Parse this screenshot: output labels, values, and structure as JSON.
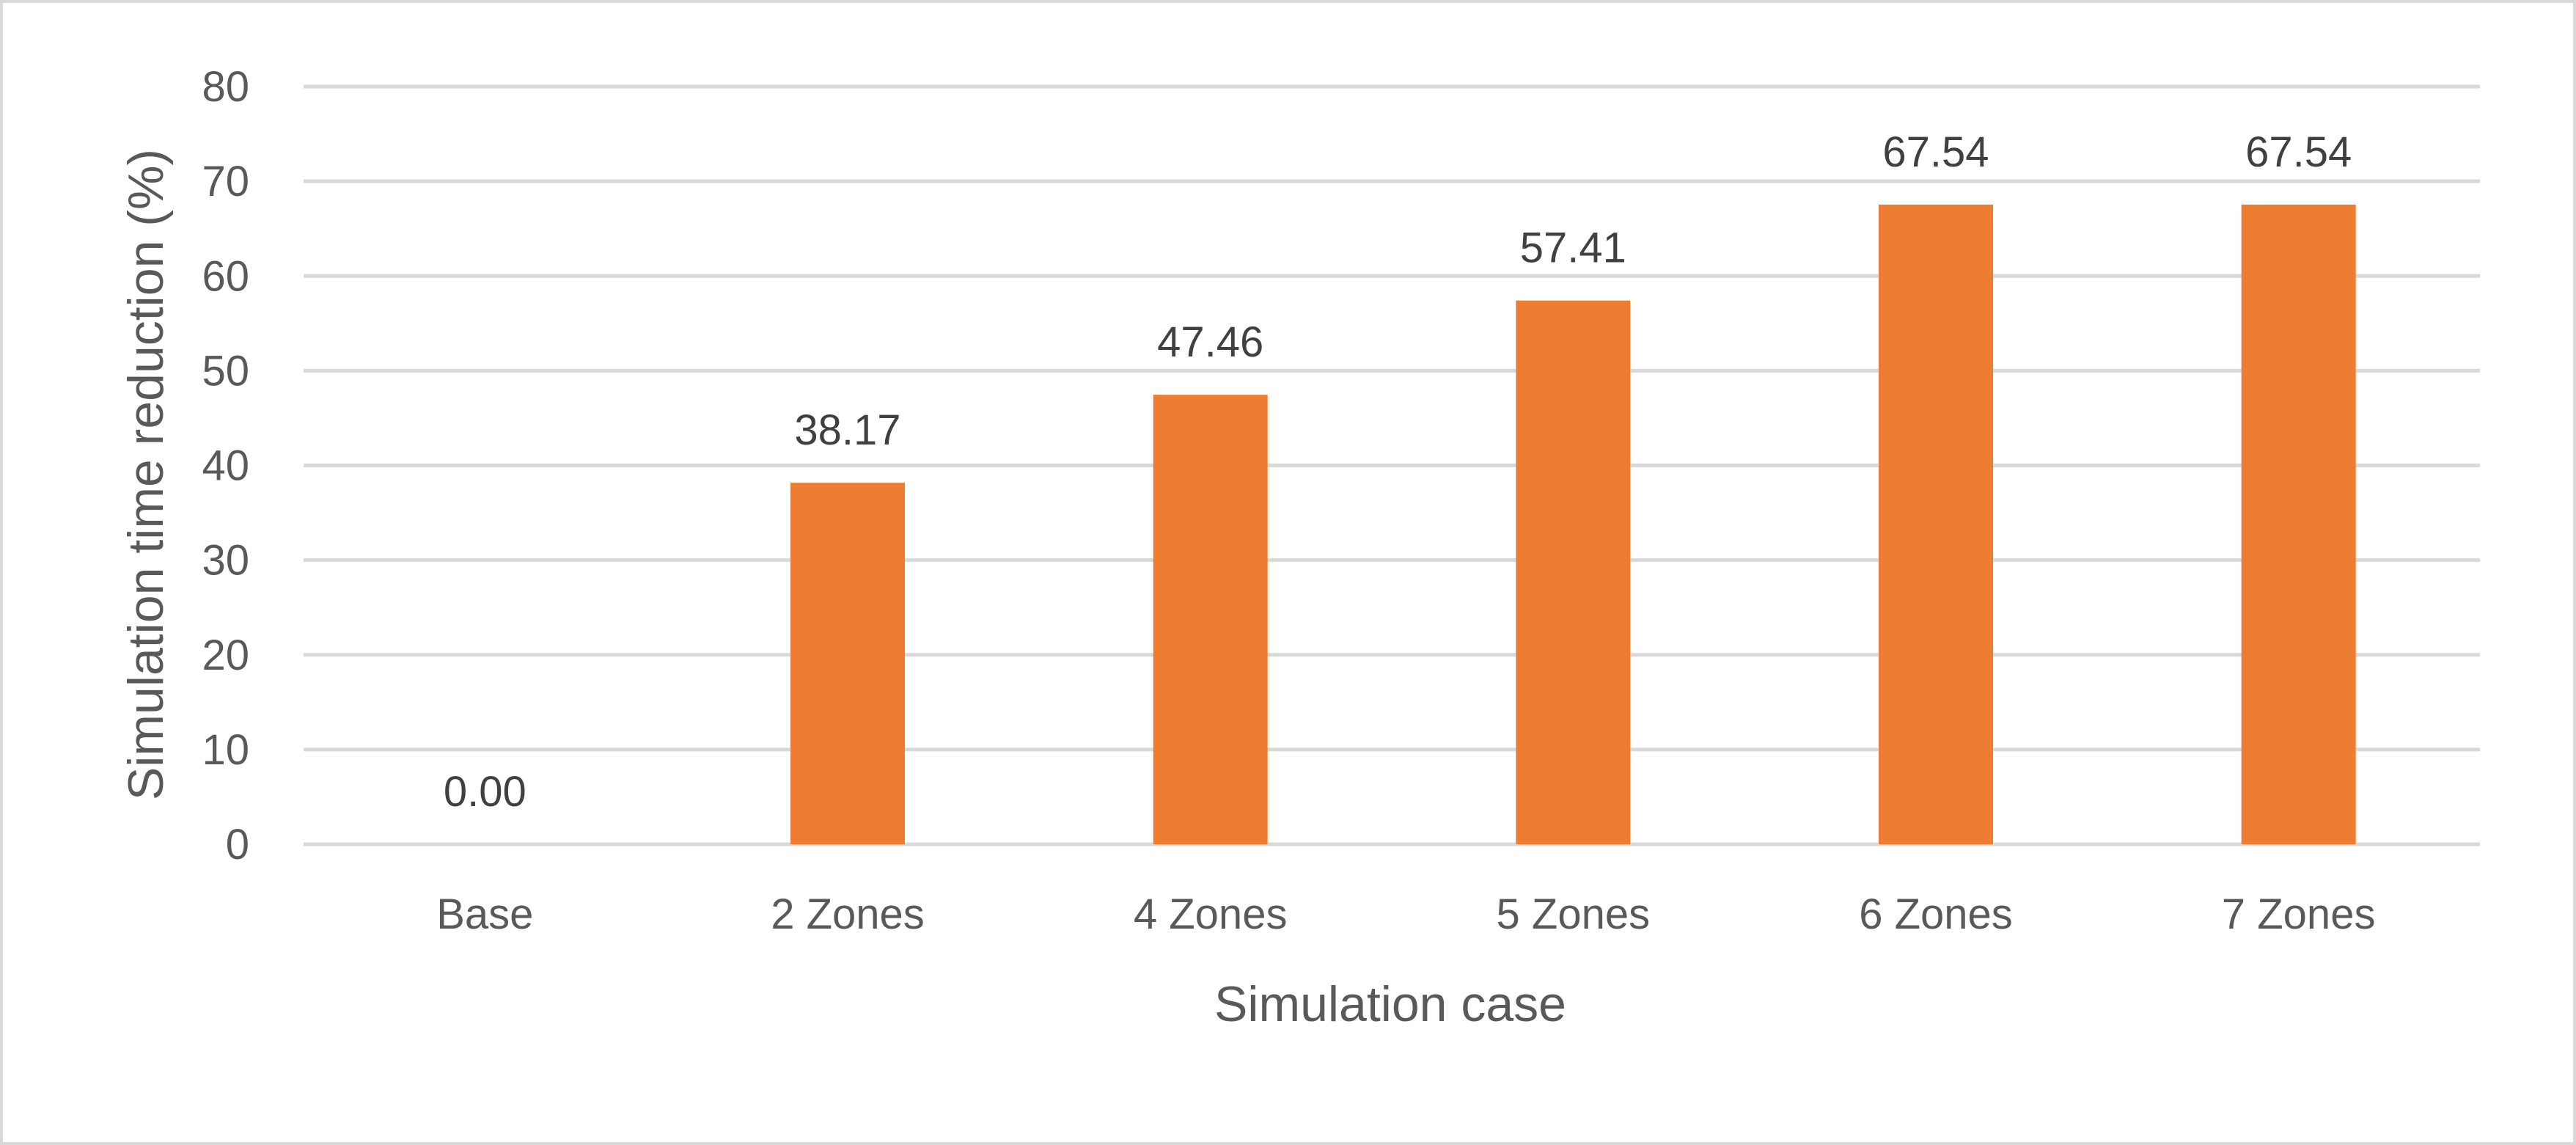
{
  "chart_data": {
    "type": "bar",
    "title": "",
    "xlabel": "Simulation case",
    "ylabel": "Simulation time reduction (%)",
    "categories": [
      "Base",
      "2 Zones",
      "4 Zones",
      "5 Zones",
      "6 Zones",
      "7 Zones"
    ],
    "values": [
      0.0,
      38.17,
      47.46,
      57.41,
      67.54,
      67.54
    ],
    "data_labels": [
      "0.00",
      "38.17",
      "47.46",
      "57.41",
      "67.54",
      "67.54"
    ],
    "ylim": [
      0,
      80
    ],
    "yticks": [
      0,
      10,
      20,
      30,
      40,
      50,
      60,
      70,
      80
    ],
    "grid": true,
    "legend": "none",
    "colors": {
      "bar": "#ED7D31",
      "grid": "#D9D9D9",
      "frame": "#D9D9D9",
      "tick_text": "#595959",
      "label_text": "#404040"
    }
  }
}
